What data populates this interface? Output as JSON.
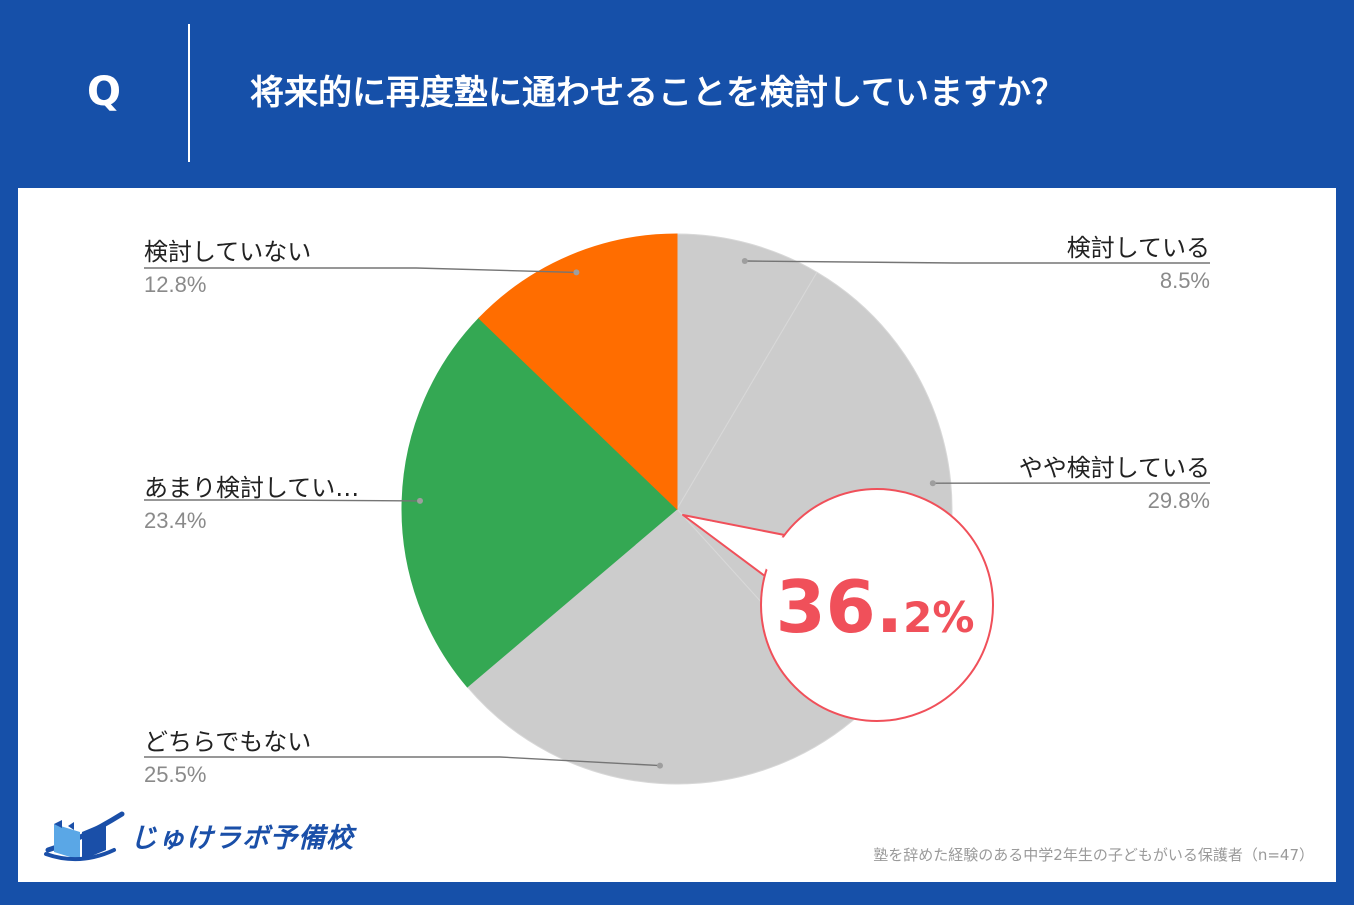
{
  "header": {
    "q_label": "Q",
    "question": "将来的に再度塾に通わせることを検討していますか？"
  },
  "colors": {
    "background": "#1650a9",
    "gray_slice": "#cccccc",
    "green_slice": "#34a853",
    "orange_slice": "#ff6d00",
    "highlight_red": "#f0505a"
  },
  "chart_data": {
    "type": "pie",
    "slices": [
      {
        "label": "検討している",
        "value_label": "8.5%",
        "value": 8.5,
        "color": "#cccccc"
      },
      {
        "label": "やや検討している",
        "value_label": "29.8%",
        "value": 29.8,
        "color": "#cccccc"
      },
      {
        "label": "どちらでもない",
        "value_label": "25.5%",
        "value": 25.5,
        "color": "#cccccc"
      },
      {
        "label": "あまり検討してい…",
        "value_label": "23.4%",
        "value": 23.4,
        "color": "#34a853"
      },
      {
        "label": "検討していない",
        "value_label": "12.8%",
        "value": 12.8,
        "color": "#ff6d00"
      }
    ],
    "callout": {
      "main": "36.",
      "small": "2%"
    }
  },
  "logo": {
    "text": "じゅけラボ予備校",
    "icon": "book-icon"
  },
  "footnote": "塾を辞めた経験のある中学2年生の子どもがいる保護者（n=47）"
}
